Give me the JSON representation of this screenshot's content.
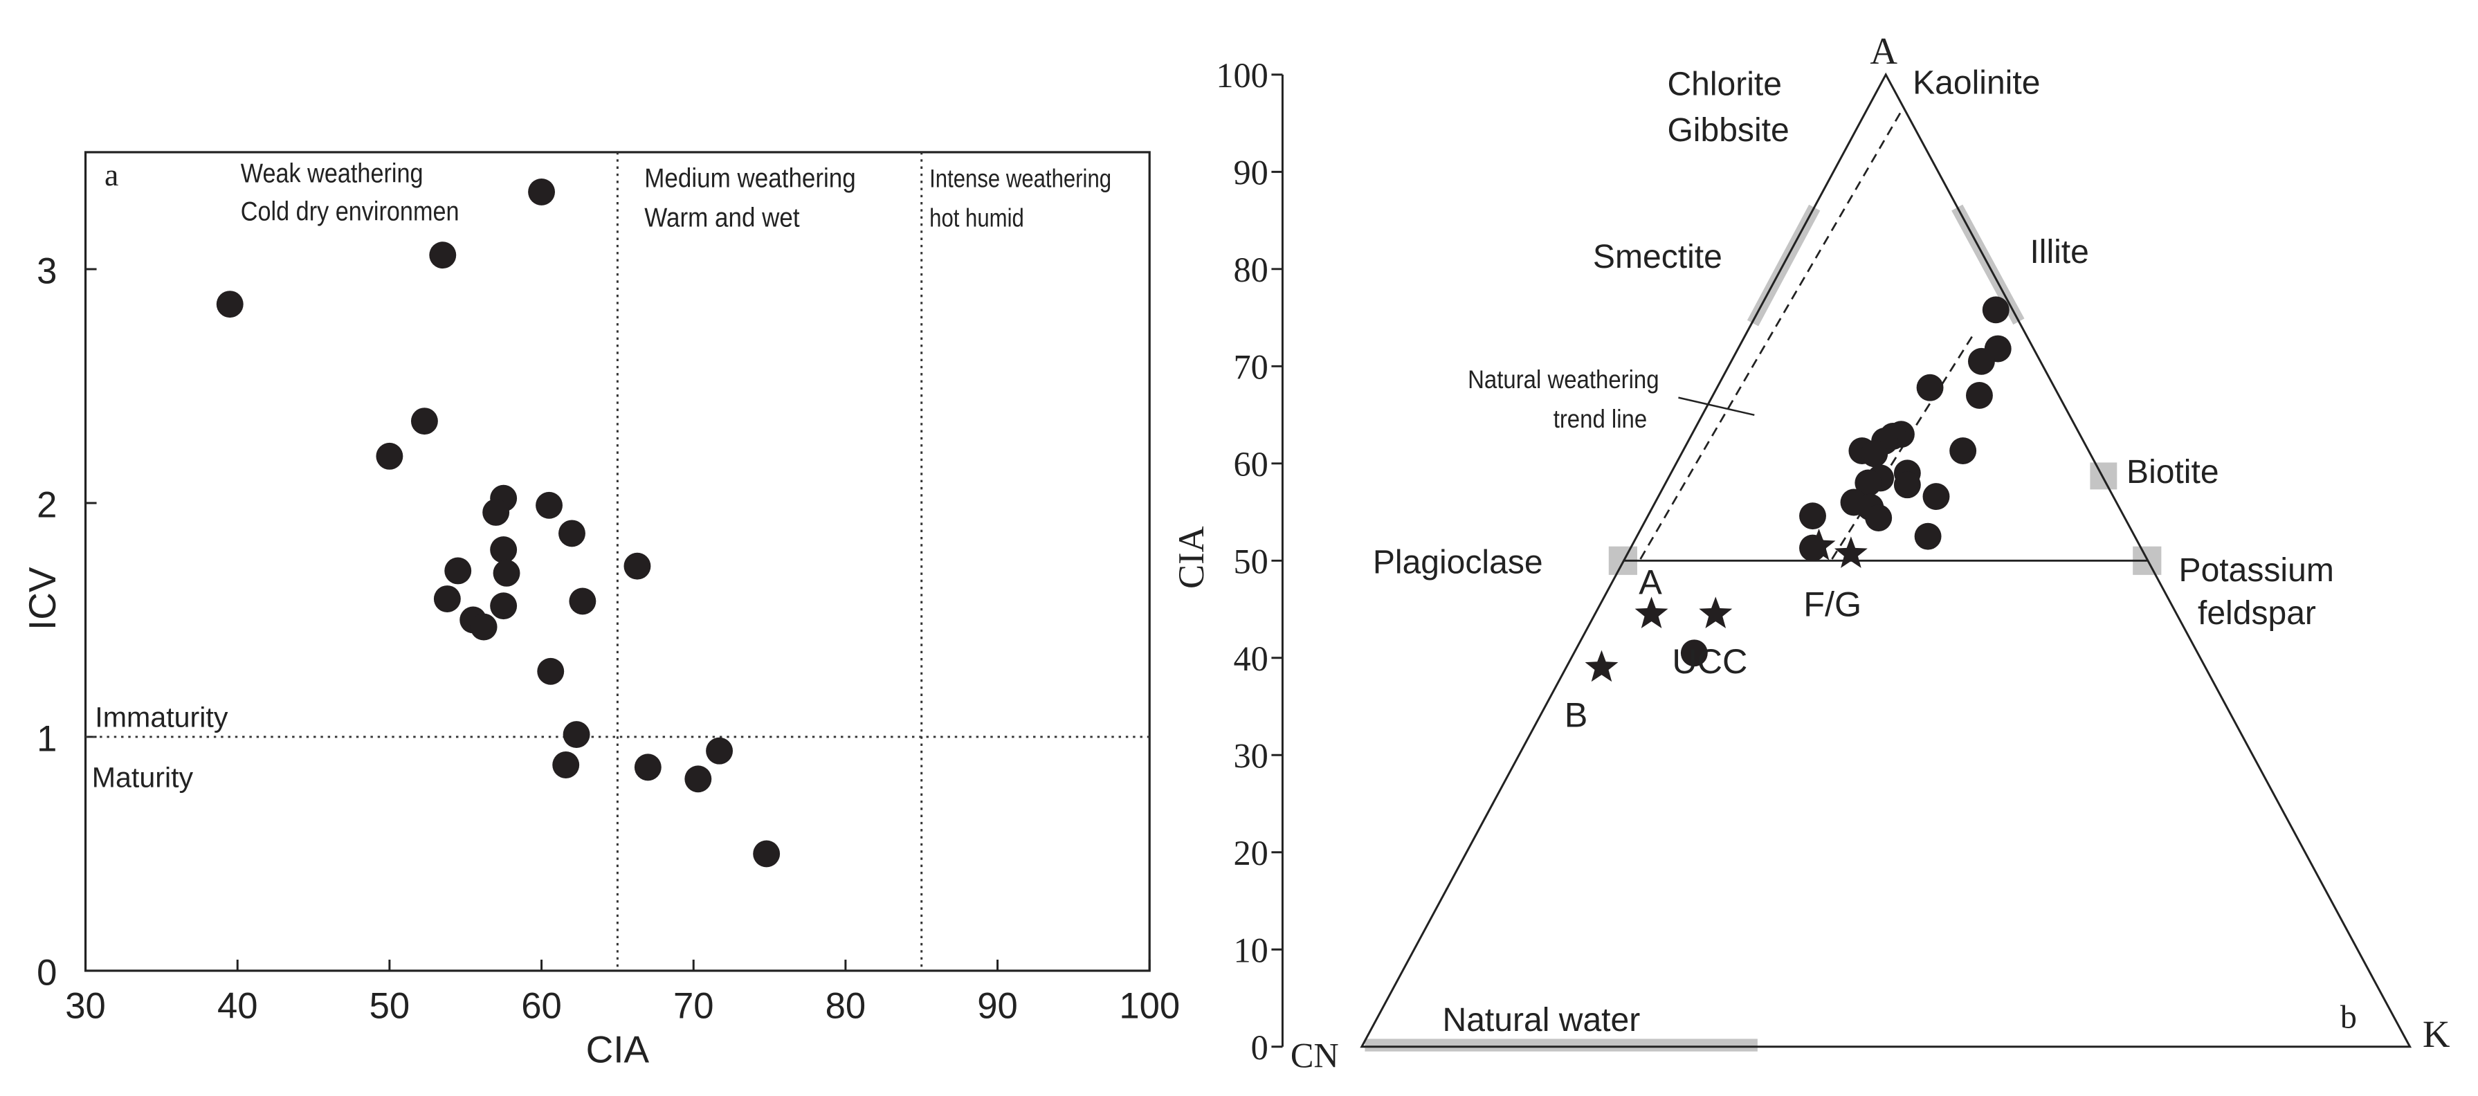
{
  "chart_data": [
    {
      "type": "scatter",
      "panel_label": "a",
      "xlabel": "CIA",
      "ylabel": "ICV",
      "xlim": [
        30,
        100
      ],
      "ylim": [
        0,
        3.5
      ],
      "xticks": [
        "30",
        "40",
        "50",
        "60",
        "70",
        "80",
        "90",
        "100"
      ],
      "yticks": [
        "0",
        "1",
        "2",
        "3"
      ],
      "grid": false,
      "divider_x": [
        65,
        85
      ],
      "divider_y": 1,
      "zone_labels": [
        {
          "line1": "Weak weathering",
          "line2": "Cold dry environmen"
        },
        {
          "line1": "Medium weathering",
          "line2": "Warm and wet"
        },
        {
          "line1": "Intense weathering",
          "line2": "hot humid"
        }
      ],
      "immaturity_label": "Immaturity",
      "maturity_label": "Maturity",
      "points": [
        {
          "x": 39.5,
          "y": 2.85
        },
        {
          "x": 60.0,
          "y": 3.33
        },
        {
          "x": 53.5,
          "y": 3.06
        },
        {
          "x": 50.0,
          "y": 2.2
        },
        {
          "x": 52.3,
          "y": 2.35
        },
        {
          "x": 57.5,
          "y": 2.02
        },
        {
          "x": 57.0,
          "y": 1.96
        },
        {
          "x": 60.5,
          "y": 1.99
        },
        {
          "x": 62.0,
          "y": 1.87
        },
        {
          "x": 57.5,
          "y": 1.8
        },
        {
          "x": 57.7,
          "y": 1.7
        },
        {
          "x": 54.5,
          "y": 1.71
        },
        {
          "x": 66.3,
          "y": 1.73
        },
        {
          "x": 53.8,
          "y": 1.59
        },
        {
          "x": 57.5,
          "y": 1.56
        },
        {
          "x": 62.7,
          "y": 1.58
        },
        {
          "x": 55.5,
          "y": 1.5
        },
        {
          "x": 56.2,
          "y": 1.47
        },
        {
          "x": 60.6,
          "y": 1.28
        },
        {
          "x": 62.3,
          "y": 1.01
        },
        {
          "x": 61.6,
          "y": 0.88
        },
        {
          "x": 67.0,
          "y": 0.87
        },
        {
          "x": 70.3,
          "y": 0.82
        },
        {
          "x": 71.7,
          "y": 0.94
        },
        {
          "x": 74.8,
          "y": 0.5
        }
      ]
    },
    {
      "type": "ternary",
      "panel_label": "b",
      "ylabel": "CIA",
      "ylim": [
        0,
        100
      ],
      "yticks": [
        "0",
        "10",
        "20",
        "30",
        "40",
        "50",
        "60",
        "70",
        "80",
        "90",
        "100"
      ],
      "vertices": {
        "top": "A",
        "left": "CN",
        "right": "K"
      },
      "mineral_labels": {
        "chlorite": "Chlorite",
        "gibbsite": "Gibbsite",
        "kaolinite": "Kaolinite",
        "smectite": "Smectite",
        "illite": "Illite",
        "biotite": "Biotite",
        "plagioclase": "Plagioclase",
        "k_feldspar_1": "Potassium",
        "k_feldspar_2": "feldspar",
        "natural_water": "Natural water"
      },
      "trend_label_1": "Natural weathering",
      "trend_label_2": "trend line",
      "reference_labels": {
        "a": "A",
        "b": "B",
        "fg": "F/G",
        "ucc": "UCC"
      },
      "reference_points": [
        {
          "name": "A",
          "cia": 44.5,
          "pos": -20,
          "marker": "star"
        },
        {
          "name": "B",
          "cia": 39.0,
          "pos": -34,
          "marker": "star"
        },
        {
          "name": "mid-star",
          "cia": 44.5,
          "pos": -2,
          "marker": "star"
        },
        {
          "name": "F",
          "cia": 51.5,
          "pos": 27,
          "marker": "star"
        },
        {
          "name": "G",
          "cia": 50.7,
          "pos": 36,
          "marker": "star"
        },
        {
          "name": "UCC",
          "cia": 40.5,
          "pos": -8,
          "marker": "circle"
        }
      ],
      "samples": [
        {
          "cia": 75.8,
          "pos": 65
        },
        {
          "cia": 71.8,
          "pos": 66
        },
        {
          "cia": 70.5,
          "pos": 58
        },
        {
          "cia": 67.8,
          "pos": 33
        },
        {
          "cia": 67.0,
          "pos": 57
        },
        {
          "cia": 63.0,
          "pos": 19
        },
        {
          "cia": 62.8,
          "pos": 15
        },
        {
          "cia": 62.3,
          "pos": 11
        },
        {
          "cia": 61.3,
          "pos": 49
        },
        {
          "cia": 61.3,
          "pos": 0
        },
        {
          "cia": 61.0,
          "pos": 6
        },
        {
          "cia": 59.0,
          "pos": 22
        },
        {
          "cia": 58.5,
          "pos": 9
        },
        {
          "cia": 58.0,
          "pos": 3
        },
        {
          "cia": 57.8,
          "pos": 22
        },
        {
          "cia": 56.6,
          "pos": 36
        },
        {
          "cia": 56.0,
          "pos": -4
        },
        {
          "cia": 55.5,
          "pos": 4
        },
        {
          "cia": 54.6,
          "pos": -24
        },
        {
          "cia": 54.4,
          "pos": 8
        },
        {
          "cia": 52.5,
          "pos": 32
        },
        {
          "cia": 51.3,
          "pos": -24
        }
      ]
    }
  ]
}
